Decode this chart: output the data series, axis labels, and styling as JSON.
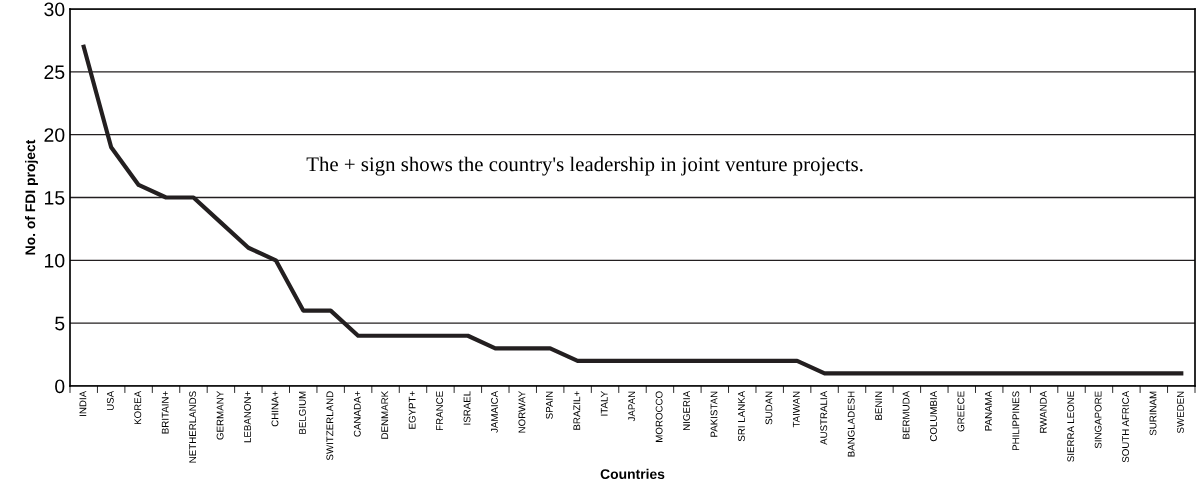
{
  "chart_data": {
    "type": "line",
    "xlabel": "Countries",
    "ylabel": "No. of FDI project",
    "categories": [
      "INDIA",
      "USA",
      "KOREA",
      "BRITAIN+",
      "NETHERLANDS",
      "GERMANY",
      "LEBANON+",
      "CHINA+",
      "BELGIUM",
      "SWITZERLAND",
      "CANADA+",
      "DENMARK",
      "EGYPT+",
      "FRANCE",
      "ISRAEL",
      "JAMAICA",
      "NORWAY",
      "SPAIN",
      "BRAZIL+",
      "ITALY",
      "JAPAN",
      "MOROCCO",
      "NIGERIA",
      "PAKISTAN",
      "SRI LANKA",
      "SUDAN",
      "TAIWAN",
      "AUSTRALIA",
      "BANGLADESH",
      "BENIN",
      "BERMUDA",
      "COLUMBIA",
      "GREECE",
      "PANAMA",
      "PHILIPPINES",
      "RWANDA",
      "SIERRA LEONE",
      "SINGAPORE",
      "SOUTH AFRICA",
      "SURINAM",
      "SWEDEN"
    ],
    "series": [
      {
        "color": "#231f20",
        "values": [
          27,
          19,
          16,
          15,
          15,
          13,
          11,
          10,
          6,
          6,
          4,
          4,
          4,
          4,
          4,
          3,
          3,
          3,
          2,
          2,
          2,
          2,
          2,
          2,
          2,
          2,
          2,
          1,
          1,
          1,
          1,
          1,
          1,
          1,
          1,
          1,
          1,
          1,
          1,
          1,
          1
        ]
      }
    ],
    "ylim": [
      0,
      30
    ],
    "yticks": [
      0,
      5,
      10,
      15,
      20,
      25,
      30
    ],
    "grid": "y",
    "marker": "none",
    "line_style": "solid",
    "annotations": [
      "The + sign shows the country's leadership in joint venture projects."
    ]
  }
}
